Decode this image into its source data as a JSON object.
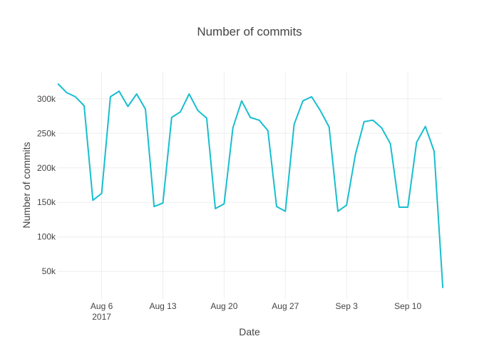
{
  "chart_data": {
    "type": "line",
    "title": "Number of commits",
    "xlabel": "Date",
    "ylabel": "Number of commits",
    "ylim": [
      10000,
      340000
    ],
    "yticks": [
      50000,
      100000,
      150000,
      200000,
      250000,
      300000
    ],
    "ytick_labels": [
      "50k",
      "100k",
      "150k",
      "200k",
      "250k",
      "300k"
    ],
    "xlim_dayoffset": [
      -5.1,
      38.9
    ],
    "xticks": [
      {
        "dayoffset": 0,
        "label": "Aug 6",
        "sublabel": "2017"
      },
      {
        "dayoffset": 7,
        "label": "Aug 13",
        "sublabel": ""
      },
      {
        "dayoffset": 14,
        "label": "Aug 20",
        "sublabel": ""
      },
      {
        "dayoffset": 21,
        "label": "Aug 27",
        "sublabel": ""
      },
      {
        "dayoffset": 28,
        "label": "Sep 3",
        "sublabel": ""
      },
      {
        "dayoffset": 35,
        "label": "Sep 10",
        "sublabel": ""
      }
    ],
    "grid": true,
    "series": [
      {
        "name": "Number of commits",
        "color": "#17becf",
        "dayoffset": [
          -5,
          -4,
          -3,
          -2,
          -1,
          0,
          1,
          2,
          3,
          4,
          5,
          6,
          7,
          8,
          9,
          10,
          11,
          12,
          13,
          14,
          15,
          16,
          17,
          18,
          19,
          20,
          21,
          22,
          23,
          24,
          25,
          26,
          27,
          28,
          29,
          30,
          31,
          32,
          33,
          34,
          35,
          36,
          37,
          38,
          39
        ],
        "values": [
          322000,
          309000,
          303000,
          290000,
          153000,
          163000,
          303000,
          311000,
          289000,
          307000,
          285000,
          144000,
          149000,
          273000,
          281000,
          307000,
          283000,
          272000,
          141000,
          148000,
          258000,
          297000,
          273000,
          269000,
          254000,
          144000,
          137000,
          263000,
          297000,
          303000,
          283000,
          259000,
          137000,
          146000,
          219000,
          267000,
          269000,
          258000,
          235000,
          143000,
          143000,
          237000,
          260000,
          224000,
          26000
        ]
      }
    ]
  }
}
